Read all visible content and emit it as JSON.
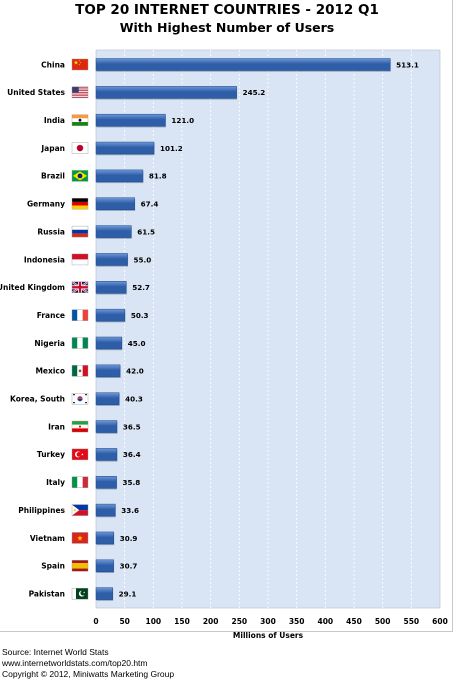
{
  "chart_data": {
    "type": "bar",
    "orientation": "horizontal",
    "title": "TOP 20 INTERNET COUNTRIES  - 2012 Q1",
    "subtitle": "With Highest Number of Users",
    "xlabel": "Millions of Users",
    "xlim": [
      0,
      600
    ],
    "xticks": [
      0,
      50,
      100,
      150,
      200,
      250,
      300,
      350,
      400,
      450,
      500,
      550,
      600
    ],
    "grid": true,
    "categories": [
      "China",
      "United States",
      "India",
      "Japan",
      "Brazil",
      "Germany",
      "Russia",
      "Indonesia",
      "United Kingdom",
      "France",
      "Nigeria",
      "Mexico",
      "Korea, South",
      "Iran",
      "Turkey",
      "Italy",
      "Philippines",
      "Vietnam",
      "Spain",
      "Pakistan"
    ],
    "values": [
      513.1,
      245.2,
      121.0,
      101.2,
      81.8,
      67.4,
      61.5,
      55.0,
      52.7,
      50.3,
      45.0,
      42.0,
      40.3,
      36.5,
      36.4,
      35.8,
      33.6,
      30.9,
      30.7,
      29.1
    ],
    "value_labels": [
      "513.1",
      "245.2",
      "121.0",
      "101.2",
      "81.8",
      "67.4",
      "61.5",
      "55.0",
      "52.7",
      "50.3",
      "45.0",
      "42.0",
      "40.3",
      "36.5",
      "36.4",
      "35.8",
      "33.6",
      "30.9",
      "30.7",
      "29.1"
    ],
    "flag_icons": [
      "china-flag-icon",
      "united-states-flag-icon",
      "india-flag-icon",
      "japan-flag-icon",
      "brazil-flag-icon",
      "germany-flag-icon",
      "russia-flag-icon",
      "indonesia-flag-icon",
      "united-kingdom-flag-icon",
      "france-flag-icon",
      "nigeria-flag-icon",
      "mexico-flag-icon",
      "korea-south-flag-icon",
      "iran-flag-icon",
      "turkey-flag-icon",
      "italy-flag-icon",
      "philippines-flag-icon",
      "vietnam-flag-icon",
      "spain-flag-icon",
      "pakistan-flag-icon"
    ],
    "colors": {
      "bar": "#2f5ea8",
      "bar_light": "#6f98d8",
      "plot_bg": "#d9e5f4",
      "grid": "#ffffff"
    }
  },
  "footer": {
    "source": "Source: Internet World Stats",
    "url": "www.internetworldstats.com/top20.htm",
    "copyright": "Copyright © 2012, Miniwatts Marketing Group"
  }
}
